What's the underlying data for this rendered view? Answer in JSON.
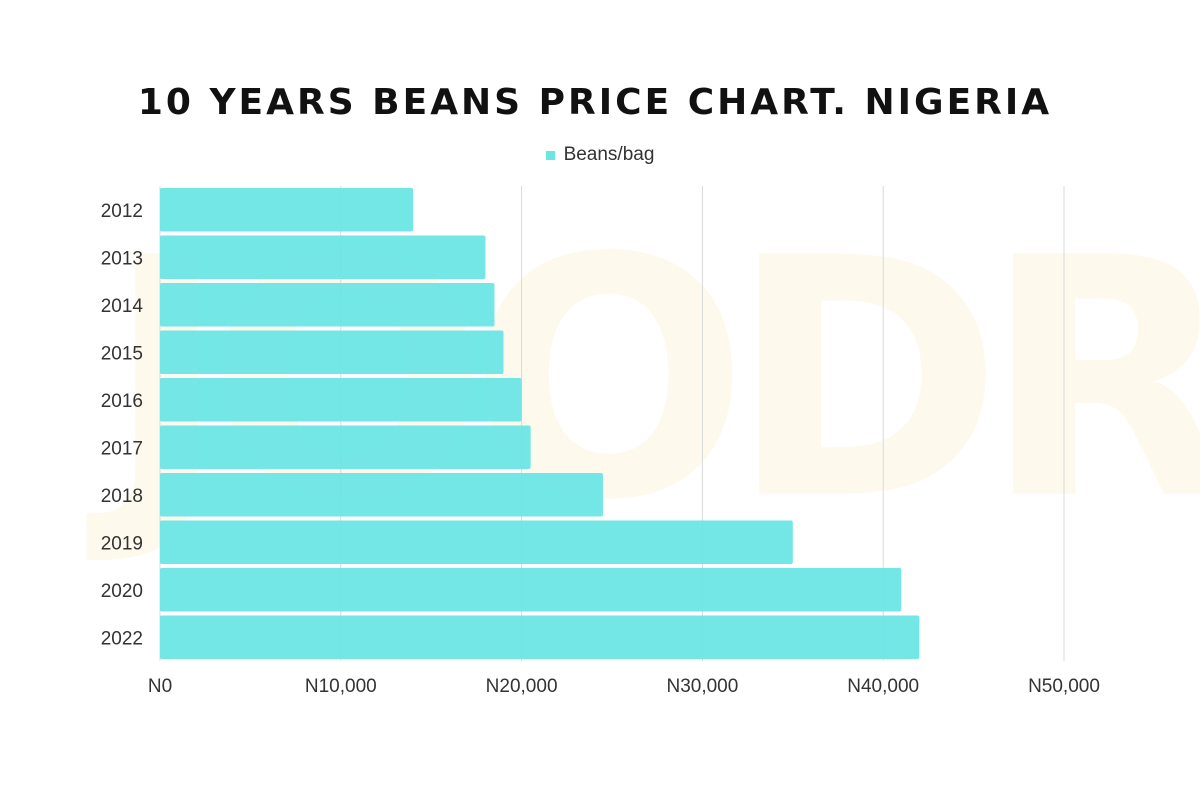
{
  "chart_data": {
    "type": "bar",
    "orientation": "horizontal",
    "title": "10 YEARS BEANS PRICE CHART. NIGERIA",
    "categories": [
      "2012",
      "2013",
      "2014",
      "2015",
      "2016",
      "2017",
      "2018",
      "2019",
      "2020",
      "2022"
    ],
    "series": [
      {
        "name": "Beans/bag",
        "color": "#6ce5e5",
        "values": [
          14000,
          18000,
          18500,
          19000,
          20000,
          20500,
          24500,
          35000,
          41000,
          42000
        ]
      }
    ],
    "xlim": [
      0,
      50000
    ],
    "xticks": [
      0,
      10000,
      20000,
      30000,
      40000,
      50000
    ],
    "xtick_labels": [
      "N0",
      "N10,000",
      "N20,000",
      "N30,000",
      "N40,000",
      "N50,000"
    ],
    "grid": "vertical",
    "legend": "top-center"
  },
  "watermark": {
    "text": "JOODRE",
    "color": "#f5c542"
  }
}
